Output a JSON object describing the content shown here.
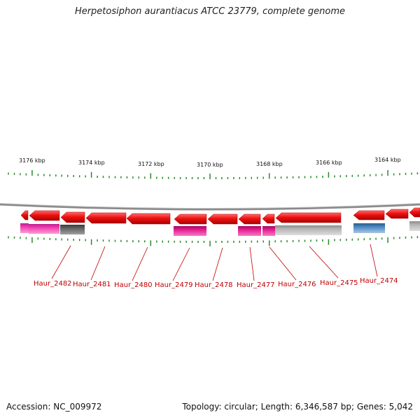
{
  "title": "Herpetosiphon aurantiacus ATCC 23779, complete genome",
  "footer": {
    "accession": "Accession: NC_009972",
    "topology": "Topology: circular; Length: 6,346,587 bp; Genes: 5,042"
  },
  "colors": {
    "backbone": "#8a8a8a",
    "tick": "#2a8a2a",
    "gene_forward": "#ee1111",
    "label": "#c00000",
    "cog_magenta": "#e0158a",
    "cog_pink": "#f03cb0",
    "cog_darkgray": "#666666",
    "cog_lightgray": "#b4b4b4",
    "cog_blue": "#4a86c0"
  },
  "scale_labels": [
    "3176 kbp",
    "3174 kbp",
    "3172 kbp",
    "3170 kbp",
    "3168 kbp",
    "3166 kbp",
    "3164 kbp"
  ],
  "gene_labels": [
    "Haur_2482",
    "Haur_2481",
    "Haur_2480",
    "Haur_2479",
    "Haur_2478",
    "Haur_2477",
    "Haur_2476",
    "Haur_2475",
    "Haur_2474"
  ],
  "genes": [
    {
      "strand": "-"
    },
    {
      "strand": "-"
    },
    {
      "strand": "-"
    },
    {
      "strand": "-"
    },
    {
      "strand": "-"
    },
    {
      "strand": "-"
    },
    {
      "strand": "-"
    },
    {
      "strand": "-"
    },
    {
      "strand": "-"
    },
    {
      "strand": "-"
    },
    {
      "strand": "-"
    },
    {
      "strand": "-"
    }
  ],
  "cog_blocks": [
    {
      "color": "cog_pink"
    },
    {
      "color": "cog_magenta"
    },
    {
      "color": "cog_darkgray"
    },
    {
      "color": "cog_magenta"
    },
    {
      "color": "cog_magenta"
    },
    {
      "color": "cog_magenta"
    },
    {
      "color": "cog_lightgray"
    },
    {
      "color": "cog_blue"
    },
    {
      "color": "cog_lightgray"
    }
  ]
}
